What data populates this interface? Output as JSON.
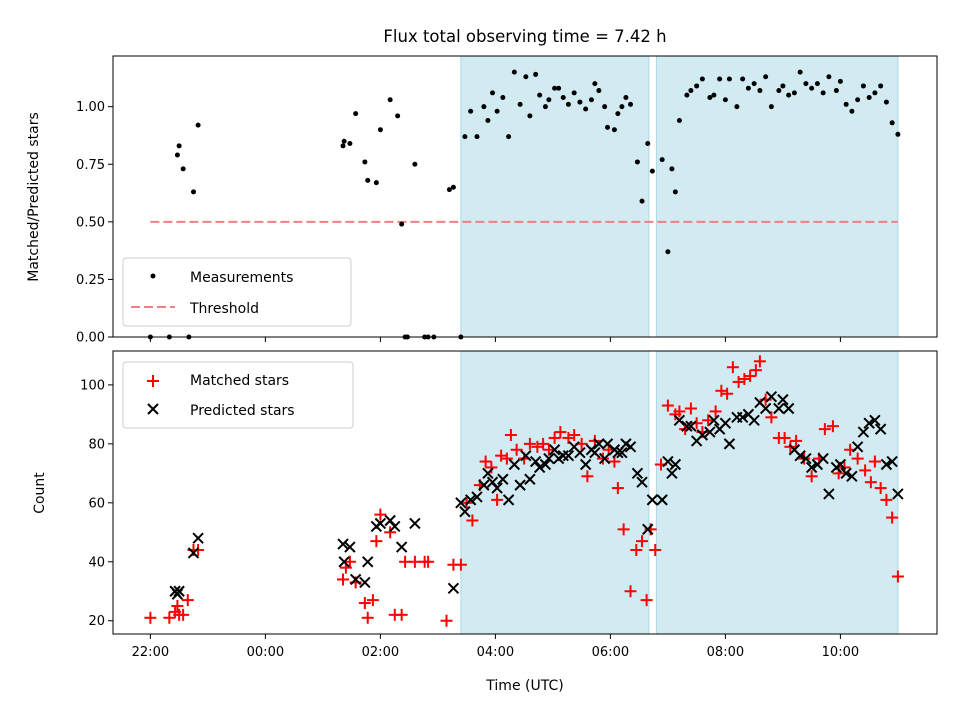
{
  "chart_data": {
    "type": "scatter",
    "title": "Flux total observing time = 7.42 h",
    "xlabel": "Time (UTC)",
    "x_unit": "hours since 22:00 UTC",
    "x_ticks": [
      {
        "value": 0,
        "label": "22:00"
      },
      {
        "value": 2,
        "label": "00:00"
      },
      {
        "value": 4,
        "label": "02:00"
      },
      {
        "value": 6,
        "label": "04:00"
      },
      {
        "value": 8,
        "label": "06:00"
      },
      {
        "value": 10,
        "label": "08:00"
      },
      {
        "value": 12,
        "label": "10:00"
      }
    ],
    "xlim": [
      -0.65,
      13.68
    ],
    "shaded_intervals": [
      [
        5.4,
        8.67
      ],
      [
        8.8,
        13.0
      ]
    ],
    "shade_color": "#add8e6",
    "top": {
      "ylabel": "Matched/Predicted stars",
      "ylim": [
        0,
        1.22
      ],
      "y_ticks": [
        0,
        0.25,
        0.5,
        0.75,
        1.0
      ],
      "y_tick_labels": [
        "0.00",
        "0.25",
        "0.50",
        "0.75",
        "1.00"
      ],
      "threshold": {
        "name": "Threshold",
        "value": 0.5,
        "x_range": [
          0,
          13.0
        ],
        "color": "#f08080"
      },
      "legend": {
        "position": "lower-left",
        "entries": [
          "Measurements",
          "Threshold"
        ]
      },
      "series": [
        {
          "name": "Measurements",
          "marker": "dot",
          "color": "#000000",
          "x": [
            0.0,
            0.33,
            0.47,
            0.5,
            0.57,
            0.67,
            0.75,
            0.83,
            3.35,
            3.37,
            3.47,
            3.57,
            3.73,
            3.78,
            3.93,
            4.0,
            4.17,
            4.3,
            4.37,
            4.43,
            4.47,
            4.6,
            4.77,
            4.83,
            4.93,
            5.2,
            5.27,
            5.4,
            5.47,
            5.57,
            5.68,
            5.8,
            5.87,
            5.95,
            6.03,
            6.13,
            6.23,
            6.33,
            6.43,
            6.53,
            6.6,
            6.7,
            6.77,
            6.87,
            6.93,
            7.03,
            7.1,
            7.18,
            7.27,
            7.37,
            7.47,
            7.57,
            7.67,
            7.73,
            7.8,
            7.9,
            7.95,
            8.07,
            8.13,
            8.2,
            8.27,
            8.35,
            8.47,
            8.55,
            8.65,
            8.73,
            8.9,
            9.0,
            9.07,
            9.13,
            9.2,
            9.33,
            9.4,
            9.5,
            9.6,
            9.73,
            9.8,
            9.9,
            10.0,
            10.07,
            10.2,
            10.3,
            10.4,
            10.5,
            10.6,
            10.7,
            10.8,
            10.93,
            11.0,
            11.1,
            11.2,
            11.3,
            11.4,
            11.5,
            11.6,
            11.7,
            11.8,
            11.93,
            12.0,
            12.1,
            12.2,
            12.3,
            12.4,
            12.5,
            12.6,
            12.7,
            12.8,
            12.9,
            13.0
          ],
          "y": [
            0.0,
            0.0,
            0.79,
            0.83,
            0.73,
            0.0,
            0.63,
            0.92,
            0.83,
            0.85,
            0.84,
            0.97,
            0.76,
            0.68,
            0.67,
            0.9,
            1.03,
            0.96,
            0.49,
            0.0,
            0.0,
            0.75,
            0.0,
            0.0,
            0.0,
            0.64,
            0.65,
            0.0,
            0.87,
            0.98,
            0.87,
            1.0,
            0.94,
            1.06,
            0.98,
            1.04,
            0.87,
            1.15,
            1.01,
            1.13,
            0.96,
            1.14,
            1.05,
            1.0,
            1.03,
            1.08,
            1.08,
            1.04,
            1.01,
            1.06,
            1.02,
            0.99,
            1.03,
            1.1,
            1.07,
            1.0,
            0.91,
            0.9,
            0.97,
            1.0,
            1.04,
            1.01,
            0.76,
            0.59,
            0.84,
            0.72,
            0.77,
            0.37,
            0.73,
            0.63,
            0.94,
            1.05,
            1.07,
            1.09,
            1.12,
            1.04,
            1.05,
            1.12,
            1.03,
            1.12,
            1.0,
            1.12,
            1.08,
            1.1,
            1.07,
            1.13,
            1.0,
            1.07,
            1.09,
            1.05,
            1.06,
            1.15,
            1.1,
            1.08,
            1.1,
            1.06,
            1.13,
            1.07,
            1.11,
            1.01,
            0.98,
            1.03,
            1.09,
            1.04,
            1.06,
            1.09,
            1.02,
            0.93,
            0.88
          ],
          "mirror_series_ref": "derived"
        }
      ]
    },
    "bottom": {
      "ylabel": "Count",
      "ylim": [
        15.5,
        111.5
      ],
      "y_ticks": [
        20,
        40,
        60,
        80,
        100
      ],
      "y_tick_labels": [
        "20",
        "40",
        "60",
        "80",
        "100"
      ],
      "legend": {
        "position": "top-left",
        "entries": [
          "Matched stars",
          "Predicted stars"
        ]
      },
      "series": [
        {
          "name": "Matched stars",
          "marker": "plus",
          "color": "#ff0000",
          "x": [
            0.0,
            0.33,
            0.43,
            0.47,
            0.5,
            0.57,
            0.65,
            0.75,
            0.83,
            3.35,
            3.4,
            3.47,
            3.57,
            3.73,
            3.78,
            3.87,
            3.93,
            4.0,
            4.17,
            4.25,
            4.37,
            4.43,
            4.6,
            4.77,
            4.83,
            5.15,
            5.27,
            5.4,
            5.5,
            5.6,
            5.73,
            5.83,
            5.93,
            6.03,
            6.1,
            6.2,
            6.27,
            6.37,
            6.5,
            6.6,
            6.73,
            6.83,
            6.93,
            7.03,
            7.13,
            7.27,
            7.37,
            7.5,
            7.6,
            7.73,
            7.87,
            7.97,
            8.07,
            8.13,
            8.23,
            8.35,
            8.45,
            8.55,
            8.63,
            8.7,
            8.78,
            8.88,
            9.0,
            9.13,
            9.2,
            9.3,
            9.4,
            9.5,
            9.6,
            9.7,
            9.83,
            9.93,
            10.03,
            10.13,
            10.23,
            10.33,
            10.43,
            10.53,
            10.6,
            10.7,
            10.8,
            10.93,
            11.03,
            11.13,
            11.23,
            11.37,
            11.5,
            11.63,
            11.73,
            11.87,
            11.97,
            12.07,
            12.17,
            12.3,
            12.43,
            12.53,
            12.6,
            12.7,
            12.8,
            12.9,
            13.0
          ],
          "y": [
            21,
            21,
            23,
            25,
            22,
            22,
            27,
            44,
            44,
            34,
            38,
            40,
            33,
            26,
            21,
            27,
            47,
            56,
            50,
            22,
            22,
            40,
            40,
            40,
            40,
            20,
            39,
            39,
            60,
            54,
            66,
            74,
            72,
            61,
            76,
            75,
            83,
            78,
            75,
            80,
            79,
            80,
            78,
            82,
            84,
            82,
            83,
            80,
            69,
            81,
            75,
            78,
            74,
            65,
            51,
            30,
            44,
            47,
            27,
            51,
            44,
            73,
            93,
            90,
            91,
            85,
            92,
            87,
            84,
            88,
            91,
            98,
            97,
            106,
            101,
            102,
            103,
            105,
            108,
            95,
            89,
            82,
            82,
            79,
            81,
            75,
            69,
            75,
            85,
            86,
            70,
            72,
            78,
            75,
            71,
            67,
            74,
            65,
            61,
            55,
            35
          ]
        },
        {
          "name": "Predicted stars",
          "marker": "x",
          "color": "#000000",
          "x": [
            0.43,
            0.47,
            0.5,
            0.75,
            0.83,
            3.35,
            3.37,
            3.47,
            3.57,
            3.73,
            3.78,
            3.93,
            4.0,
            4.17,
            4.25,
            4.37,
            4.6,
            5.27,
            5.4,
            5.47,
            5.57,
            5.68,
            5.8,
            5.87,
            5.95,
            6.03,
            6.13,
            6.23,
            6.33,
            6.43,
            6.53,
            6.6,
            6.7,
            6.77,
            6.87,
            6.93,
            7.03,
            7.1,
            7.18,
            7.27,
            7.37,
            7.47,
            7.57,
            7.67,
            7.73,
            7.8,
            7.9,
            7.95,
            8.07,
            8.13,
            8.2,
            8.27,
            8.35,
            8.47,
            8.55,
            8.65,
            8.73,
            8.9,
            9.0,
            9.07,
            9.13,
            9.2,
            9.33,
            9.4,
            9.5,
            9.6,
            9.73,
            9.8,
            9.9,
            10.0,
            10.07,
            10.2,
            10.3,
            10.4,
            10.5,
            10.6,
            10.7,
            10.8,
            10.93,
            11.0,
            11.1,
            11.2,
            11.3,
            11.4,
            11.5,
            11.6,
            11.7,
            11.8,
            11.93,
            12.0,
            12.1,
            12.2,
            12.3,
            12.4,
            12.5,
            12.6,
            12.7,
            12.8,
            12.9,
            13.0
          ],
          "y": [
            30,
            29,
            30,
            43,
            48,
            46,
            40,
            45,
            34,
            33,
            40,
            52,
            53,
            54,
            52,
            45,
            53,
            31,
            60,
            57,
            61,
            62,
            66,
            70,
            67,
            65,
            68,
            61,
            73,
            66,
            76,
            68,
            74,
            72,
            73,
            75,
            78,
            75,
            76,
            76,
            79,
            77,
            73,
            78,
            77,
            80,
            75,
            80,
            78,
            77,
            77,
            80,
            79,
            70,
            67,
            51,
            61,
            61,
            74,
            70,
            73,
            88,
            86,
            86,
            81,
            83,
            84,
            88,
            85,
            87,
            80,
            89,
            89,
            90,
            88,
            94,
            92,
            96,
            92,
            95,
            92,
            78,
            76,
            75,
            72,
            73,
            75,
            63,
            72,
            73,
            70,
            69,
            79,
            84,
            87,
            88,
            85,
            73,
            74,
            63
          ]
        }
      ]
    }
  }
}
